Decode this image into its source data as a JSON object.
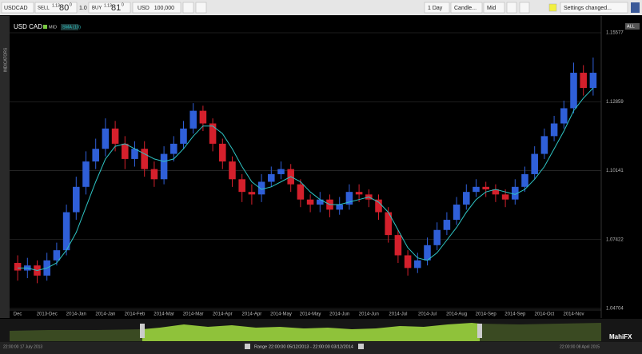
{
  "toolbar": {
    "symbol": "USDCAD",
    "sell_label": "SELL",
    "sell_big": "1.13",
    "sell_pips": "80",
    "sell_frac": "0",
    "size": "1.0",
    "buy_label": "BUY",
    "buy_big": "1.13",
    "buy_pips": "81",
    "buy_frac": "0",
    "currency": "USD",
    "amount": "100,000",
    "interval": "1 Day",
    "chart_style": "Candle...",
    "price_type": "Mid",
    "settings": "Settings changed..."
  },
  "chart_data": {
    "type": "candlestick",
    "title": "USD CAD",
    "price_label": "MID",
    "zoom_label": "ALL",
    "side_tab": "INDICATORS",
    "up_color": "#2f5fd8",
    "down_color": "#d4202c",
    "categories": [
      "Dec",
      null,
      null,
      "2013-Dec",
      null,
      null,
      "2014-Jan",
      null,
      null,
      "2014-Jan",
      null,
      null,
      "2014-Feb",
      null,
      null,
      "2014-Mar",
      null,
      null,
      "2014-Mar",
      null,
      null,
      "2014-Apr",
      null,
      null,
      "2014-Apr",
      null,
      null,
      "2014-May",
      null,
      null,
      "2014-May",
      null,
      null,
      "2014-Jun",
      null,
      null,
      "2014-Jun",
      null,
      null,
      "2014-Jul",
      null,
      null,
      "2014-Jul",
      null,
      null,
      "2014-Aug",
      null,
      null,
      "2014-Sep",
      null,
      null,
      "2014-Sep",
      null,
      null,
      "2014-Oct",
      null,
      null,
      "2014-Nov",
      null,
      null
    ],
    "open": [
      1.065,
      1.062,
      1.064,
      1.06,
      1.066,
      1.07,
      1.085,
      1.095,
      1.105,
      1.11,
      1.118,
      1.112,
      1.106,
      1.11,
      1.102,
      1.098,
      1.108,
      1.112,
      1.118,
      1.125,
      1.12,
      1.112,
      1.105,
      1.098,
      1.093,
      1.092,
      1.097,
      1.1,
      1.102,
      1.096,
      1.09,
      1.088,
      1.09,
      1.086,
      1.088,
      1.093,
      1.092,
      1.09,
      1.085,
      1.076,
      1.068,
      1.063,
      1.066,
      1.072,
      1.078,
      1.082,
      1.088,
      1.093,
      1.095,
      1.094,
      1.092,
      1.09,
      1.095,
      1.1,
      1.108,
      1.115,
      1.12,
      1.126,
      1.14,
      1.134
    ],
    "high": [
      1.068,
      1.067,
      1.066,
      1.069,
      1.073,
      1.088,
      1.099,
      1.109,
      1.114,
      1.122,
      1.121,
      1.115,
      1.113,
      1.113,
      1.105,
      1.111,
      1.115,
      1.121,
      1.128,
      1.127,
      1.122,
      1.114,
      1.107,
      1.1,
      1.096,
      1.1,
      1.103,
      1.105,
      1.104,
      1.098,
      1.092,
      1.093,
      1.092,
      1.091,
      1.096,
      1.096,
      1.094,
      1.092,
      1.087,
      1.078,
      1.07,
      1.069,
      1.075,
      1.081,
      1.085,
      1.091,
      1.096,
      1.098,
      1.097,
      1.096,
      1.094,
      1.098,
      1.103,
      1.111,
      1.118,
      1.123,
      1.129,
      1.144,
      1.143,
      1.146
    ],
    "low": [
      1.058,
      1.059,
      1.057,
      1.058,
      1.064,
      1.068,
      1.082,
      1.092,
      1.102,
      1.107,
      1.109,
      1.102,
      1.103,
      1.099,
      1.095,
      1.096,
      1.105,
      1.11,
      1.116,
      1.117,
      1.109,
      1.102,
      1.095,
      1.089,
      1.088,
      1.089,
      1.095,
      1.098,
      1.093,
      1.087,
      1.085,
      1.085,
      1.083,
      1.084,
      1.086,
      1.089,
      1.087,
      1.082,
      1.073,
      1.065,
      1.06,
      1.061,
      1.064,
      1.07,
      1.076,
      1.08,
      1.086,
      1.091,
      1.091,
      1.089,
      1.087,
      1.088,
      1.093,
      1.098,
      1.106,
      1.113,
      1.118,
      1.124,
      1.131,
      1.131
    ],
    "close": [
      1.062,
      1.064,
      1.06,
      1.066,
      1.07,
      1.085,
      1.095,
      1.105,
      1.11,
      1.118,
      1.112,
      1.106,
      1.11,
      1.102,
      1.098,
      1.108,
      1.112,
      1.118,
      1.125,
      1.12,
      1.112,
      1.105,
      1.098,
      1.093,
      1.092,
      1.097,
      1.1,
      1.102,
      1.096,
      1.09,
      1.088,
      1.09,
      1.086,
      1.088,
      1.093,
      1.092,
      1.09,
      1.085,
      1.076,
      1.068,
      1.063,
      1.066,
      1.072,
      1.078,
      1.082,
      1.088,
      1.093,
      1.095,
      1.094,
      1.092,
      1.09,
      1.095,
      1.1,
      1.108,
      1.115,
      1.12,
      1.126,
      1.14,
      1.134,
      1.14
    ],
    "sma": {
      "name": "SMA (10)",
      "color": "#2ec4c4",
      "values": [
        1.063,
        1.063,
        1.062,
        1.063,
        1.065,
        1.07,
        1.077,
        1.087,
        1.097,
        1.106,
        1.111,
        1.112,
        1.11,
        1.108,
        1.106,
        1.105,
        1.106,
        1.11,
        1.115,
        1.119,
        1.119,
        1.116,
        1.11,
        1.103,
        1.097,
        1.094,
        1.095,
        1.097,
        1.099,
        1.097,
        1.093,
        1.09,
        1.088,
        1.088,
        1.089,
        1.09,
        1.091,
        1.089,
        1.085,
        1.078,
        1.071,
        1.067,
        1.066,
        1.069,
        1.074,
        1.079,
        1.085,
        1.09,
        1.093,
        1.094,
        1.093,
        1.092,
        1.094,
        1.098,
        1.103,
        1.11,
        1.117,
        1.125,
        1.13,
        1.134
      ]
    },
    "ylim": [
      1.04704,
      1.15577
    ],
    "yticks": [
      1.04704,
      1.07422,
      1.10141,
      1.12859,
      1.15577
    ],
    "grid": true
  },
  "navigator": {
    "start": "22:00:00 17 July 2013",
    "range_label": "Range",
    "range": "22:00:00 05/12/2013 - 22:00:00 03/12/2014",
    "end": "22:00:00 08 April 2015",
    "brand": "MahiFX"
  }
}
